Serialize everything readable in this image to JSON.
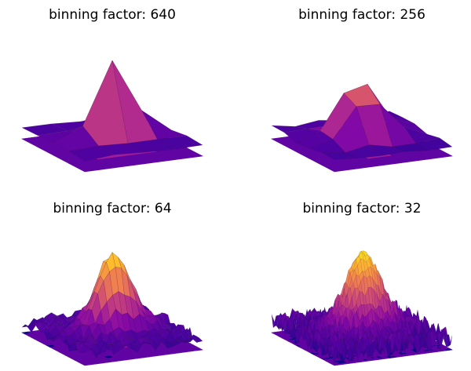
{
  "chart_data": [
    {
      "type": "surface3d",
      "title": "binning factor: 640",
      "bins": 640,
      "colormap": "plasma",
      "projected_contour": true
    },
    {
      "type": "surface3d",
      "title": "binning factor: 256",
      "bins": 256,
      "colormap": "plasma",
      "projected_contour": true
    },
    {
      "type": "surface3d",
      "title": "binning factor: 64",
      "bins": 64,
      "colormap": "plasma",
      "projected_contour": true
    },
    {
      "type": "surface3d",
      "title": "binning factor: 32",
      "bins": 32,
      "colormap": "plasma",
      "projected_contour": true
    }
  ]
}
